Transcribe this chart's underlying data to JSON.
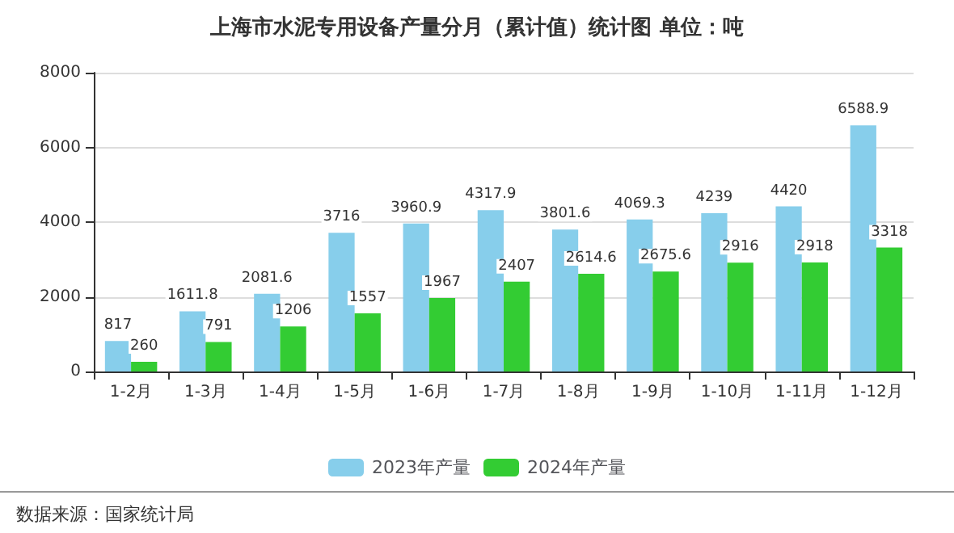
{
  "chart_data": {
    "type": "bar",
    "title": "上海市水泥专用设备产量分月（累计值）统计图 单位：吨",
    "categories": [
      "1-2月",
      "1-3月",
      "1-4月",
      "1-5月",
      "1-6月",
      "1-7月",
      "1-8月",
      "1-9月",
      "1-10月",
      "1-11月",
      "1-12月"
    ],
    "series": [
      {
        "name": "2023年产量",
        "color": "#87ceeb",
        "values": [
          817,
          1611.8,
          2081.6,
          3716,
          3960.9,
          4317.9,
          3801.6,
          4069.3,
          4239,
          4420,
          6588.9
        ]
      },
      {
        "name": "2024年产量",
        "color": "#33cc33",
        "values": [
          260,
          791,
          1206,
          1557,
          1967,
          2407,
          2614.6,
          2675.6,
          2916,
          2918,
          3318
        ]
      }
    ],
    "ylim": [
      0,
      8000
    ],
    "yticks": [
      0,
      2000,
      4000,
      6000,
      8000
    ],
    "grid": "y",
    "legend": "bottom",
    "data_labels": true,
    "annotations": [
      "数据来源：国家统计局"
    ]
  }
}
